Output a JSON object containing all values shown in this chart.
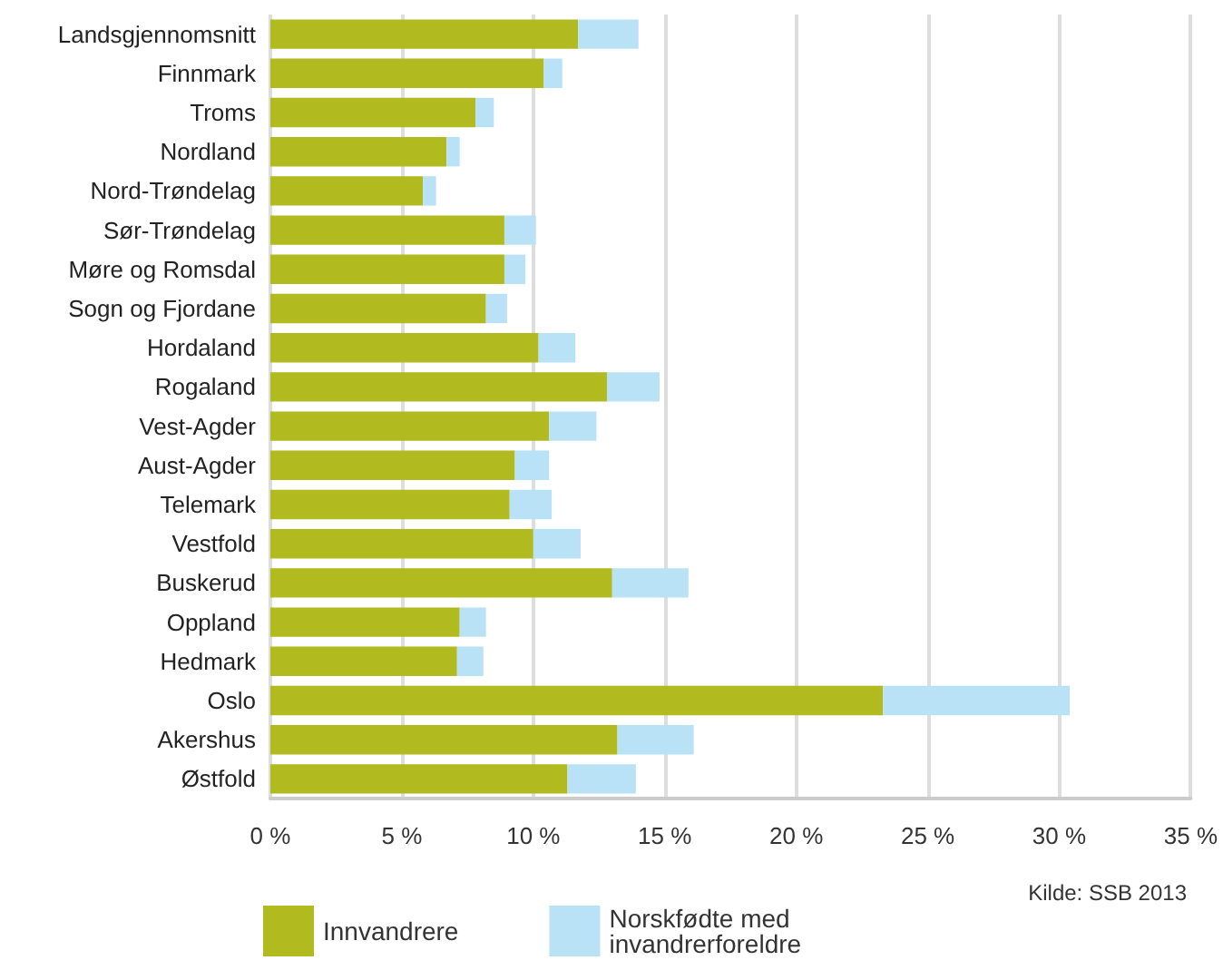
{
  "chart_data": {
    "type": "bar",
    "orientation": "horizontal",
    "stacked": true,
    "categories": [
      "Landsgjennomsnitt",
      "Finnmark",
      "Troms",
      "Nordland",
      "Nord-Trøndelag",
      "Sør-Trøndelag",
      "Møre og Romsdal",
      "Sogn og Fjordane",
      "Hordaland",
      "Rogaland",
      "Vest-Agder",
      "Aust-Agder",
      "Telemark",
      "Vestfold",
      "Buskerud",
      "Oppland",
      "Hedmark",
      "Oslo",
      "Akershus",
      "Østfold"
    ],
    "series": [
      {
        "name": "Innvandrere",
        "color": "#b1ba1f",
        "values": [
          11.7,
          10.4,
          7.8,
          6.7,
          5.8,
          8.9,
          8.9,
          8.2,
          10.2,
          12.8,
          10.6,
          9.3,
          9.1,
          10.0,
          13.0,
          7.2,
          7.1,
          23.3,
          13.2,
          11.3
        ]
      },
      {
        "name": "Norskfødte med invandrerforeldre",
        "color": "#bae2f7",
        "values": [
          2.3,
          0.7,
          0.7,
          0.5,
          0.5,
          1.2,
          0.8,
          0.8,
          1.4,
          2.0,
          1.8,
          1.3,
          1.6,
          1.8,
          2.9,
          1.0,
          1.0,
          7.1,
          2.9,
          2.6
        ]
      }
    ],
    "xlim": [
      0,
      35
    ],
    "xticks": [
      {
        "value": 0,
        "label": "0 %"
      },
      {
        "value": 5,
        "label": "5 %"
      },
      {
        "value": 10,
        "label": "10 %"
      },
      {
        "value": 15,
        "label": "15 %"
      },
      {
        "value": 20,
        "label": "20 %"
      },
      {
        "value": 25,
        "label": "25 %"
      },
      {
        "value": 30,
        "label": "30 %"
      },
      {
        "value": 35,
        "label": "35 %"
      }
    ],
    "grid": "x",
    "legend": "bottom",
    "annotations": [
      "Kilde: SSB 2013"
    ]
  }
}
